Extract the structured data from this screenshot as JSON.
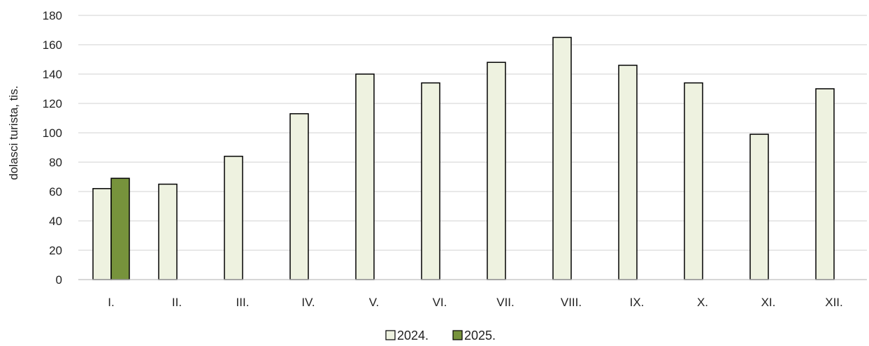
{
  "chart_data": {
    "type": "bar",
    "title": "",
    "xlabel": "",
    "ylabel": "dolasci turista, tis.",
    "ylim": [
      0,
      180
    ],
    "yticks": [
      0,
      20,
      40,
      60,
      80,
      100,
      120,
      140,
      160,
      180
    ],
    "grid": true,
    "legend_position": "bottom",
    "categories": [
      "I.",
      "II.",
      "III.",
      "IV.",
      "V.",
      "VI.",
      "VII.",
      "VIII.",
      "IX.",
      "X.",
      "XI.",
      "XII."
    ],
    "series": [
      {
        "name": "2024.",
        "color": "#eef2e0",
        "values": [
          62,
          65,
          84,
          113,
          140,
          134,
          148,
          165,
          146,
          134,
          99,
          130
        ]
      },
      {
        "name": "2025.",
        "color": "#77933c",
        "values": [
          69,
          null,
          null,
          null,
          null,
          null,
          null,
          null,
          null,
          null,
          null,
          null
        ]
      }
    ]
  }
}
